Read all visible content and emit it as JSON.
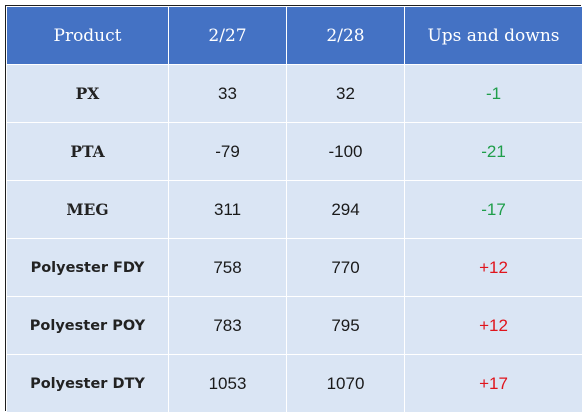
{
  "table": {
    "headers": [
      "Product",
      "2/27",
      "2/28",
      "Ups and downs"
    ],
    "rows": [
      {
        "product": "PX",
        "d1": "33",
        "d2": "32",
        "change": "-1"
      },
      {
        "product": "PTA",
        "d1": "-79",
        "d2": "-100",
        "change": "-21"
      },
      {
        "product": "MEG",
        "d1": "311",
        "d2": "294",
        "change": "-17"
      },
      {
        "product": "Polyester FDY",
        "d1": "758",
        "d2": "770",
        "change": "+12"
      },
      {
        "product": "Polyester POY",
        "d1": "783",
        "d2": "795",
        "change": "+12"
      },
      {
        "product": "Polyester DTY",
        "d1": "1053",
        "d2": "1070",
        "change": "+17"
      }
    ]
  },
  "colors": {
    "header_bg": "#4472c4",
    "row_bg": "#dae5f4",
    "down": "#1f9e4a",
    "up": "#e0141c"
  }
}
